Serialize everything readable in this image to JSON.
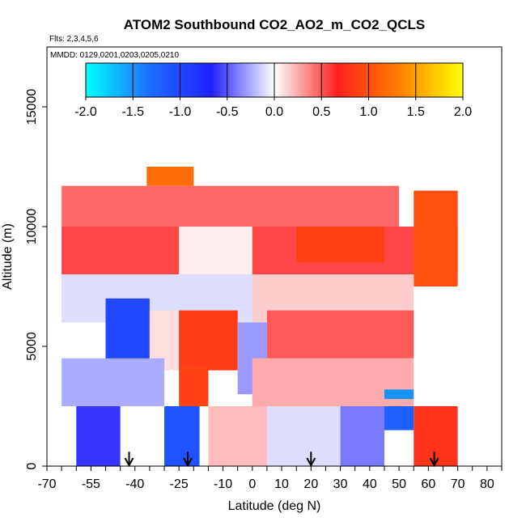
{
  "chart_data": {
    "type": "heatmap",
    "title": "ATOM2 Southbound CO2_AO2_m_CO2_QCLS",
    "subtitle_flights": "Flts: 2,3,4,5,6",
    "subtitle_dates": "MMDD: 0129,0201,0203,0205,0210",
    "xlabel": "Latitude (deg N)",
    "ylabel": "Altitude (m)",
    "xlim": [
      -70,
      85
    ],
    "ylim": [
      0,
      17500
    ],
    "x_ticks": [
      -70,
      -65,
      -60,
      -55,
      -50,
      -45,
      -40,
      -35,
      -30,
      -25,
      -20,
      -15,
      -10,
      -5,
      0,
      5,
      10,
      15,
      20,
      25,
      30,
      35,
      40,
      45,
      50,
      55,
      60,
      65,
      70,
      75,
      80,
      85
    ],
    "x_tick_labels": [
      "-70",
      "-55",
      "-40",
      "-25",
      "-10",
      "0",
      "10",
      "20",
      "30",
      "40",
      "50",
      "60",
      "70",
      "80"
    ],
    "x_tick_label_values": [
      -70,
      -55,
      -40,
      -25,
      -10,
      0,
      10,
      20,
      30,
      40,
      50,
      60,
      70,
      80
    ],
    "y_ticks": [
      0,
      5000,
      10000,
      15000
    ],
    "y_tick_labels": [
      "0",
      "5000",
      "10000",
      "15000"
    ],
    "colorbar": {
      "range": [
        -2.0,
        2.0
      ],
      "tick_labels": [
        "-2.0",
        "-1.5",
        "-1.0",
        "-0.5",
        "0.0",
        "0.5",
        "1.0",
        "1.5",
        "2.0"
      ],
      "tick_values": [
        -2.0,
        -1.5,
        -1.0,
        -0.5,
        0.0,
        0.5,
        1.0,
        1.5,
        2.0
      ],
      "palette": [
        "#00ffff",
        "#1e6fff",
        "#2020ff",
        "#ffffff",
        "#ff2020",
        "#ff8000",
        "#ffff00"
      ]
    },
    "arrows_latitude": [
      -42,
      -22,
      20,
      62
    ],
    "field_regions": [
      {
        "lat": [
          -36,
          -20
        ],
        "alt": [
          11700,
          12500
        ],
        "value": 1.2
      },
      {
        "lat": [
          -65,
          50
        ],
        "alt": [
          10000,
          11700
        ],
        "value": 0.45
      },
      {
        "lat": [
          -65,
          70
        ],
        "alt": [
          8000,
          10000
        ],
        "value": 0.55
      },
      {
        "lat": [
          -25,
          0
        ],
        "alt": [
          8000,
          10000
        ],
        "value": 0.05
      },
      {
        "lat": [
          15,
          45
        ],
        "alt": [
          8500,
          10000
        ],
        "value": 0.9
      },
      {
        "lat": [
          55,
          70
        ],
        "alt": [
          7500,
          11500
        ],
        "value": 1.0
      },
      {
        "lat": [
          -65,
          0
        ],
        "alt": [
          6000,
          8000
        ],
        "value": -0.1
      },
      {
        "lat": [
          0,
          55
        ],
        "alt": [
          6000,
          8000
        ],
        "value": 0.15
      },
      {
        "lat": [
          -50,
          -35
        ],
        "alt": [
          4000,
          7000
        ],
        "value": -1.0
      },
      {
        "lat": [
          -35,
          -25
        ],
        "alt": [
          4000,
          6500
        ],
        "value": 0.1
      },
      {
        "lat": [
          -25,
          -5
        ],
        "alt": [
          4000,
          6500
        ],
        "value": 0.85
      },
      {
        "lat": [
          -5,
          5
        ],
        "alt": [
          3000,
          6000
        ],
        "value": -0.3
      },
      {
        "lat": [
          5,
          55
        ],
        "alt": [
          4500,
          6500
        ],
        "value": 0.5
      },
      {
        "lat": [
          -65,
          -30
        ],
        "alt": [
          2500,
          4500
        ],
        "value": -0.25
      },
      {
        "lat": [
          -25,
          -15
        ],
        "alt": [
          2500,
          4200
        ],
        "value": 0.9
      },
      {
        "lat": [
          0,
          55
        ],
        "alt": [
          2500,
          4500
        ],
        "value": 0.25
      },
      {
        "lat": [
          45,
          55
        ],
        "alt": [
          2800,
          3200
        ],
        "value": -1.5
      },
      {
        "lat": [
          -60,
          -45
        ],
        "alt": [
          0,
          2500
        ],
        "value": -0.6
      },
      {
        "lat": [
          -30,
          -18
        ],
        "alt": [
          0,
          2500
        ],
        "value": -1.1
      },
      {
        "lat": [
          -15,
          5
        ],
        "alt": [
          0,
          2500
        ],
        "value": 0.2
      },
      {
        "lat": [
          5,
          30
        ],
        "alt": [
          0,
          2500
        ],
        "value": -0.1
      },
      {
        "lat": [
          30,
          45
        ],
        "alt": [
          0,
          2500
        ],
        "value": -0.4
      },
      {
        "lat": [
          45,
          55
        ],
        "alt": [
          1500,
          2500
        ],
        "value": -1.2
      },
      {
        "lat": [
          55,
          70
        ],
        "alt": [
          0,
          2500
        ],
        "value": 0.8
      }
    ]
  }
}
